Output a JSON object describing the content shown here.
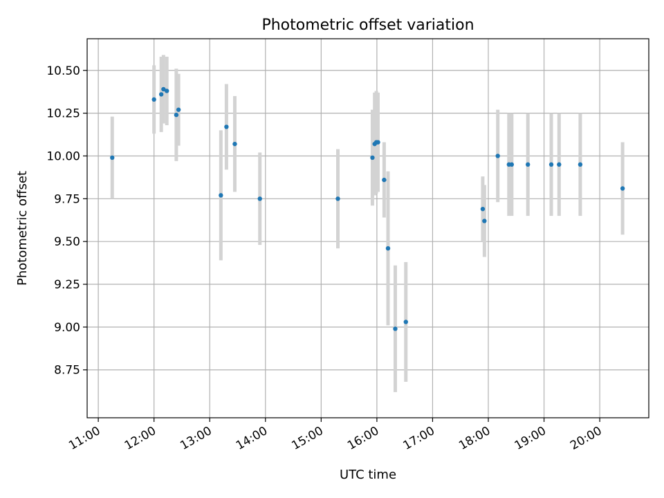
{
  "chart_data": {
    "type": "scatter",
    "title": "Photometric offset variation",
    "xlabel": "UTC time",
    "ylabel": "Photometric offset",
    "grid": true,
    "xlim": [
      10.8,
      20.88
    ],
    "ylim": [
      8.47,
      10.685
    ],
    "xticks": [
      {
        "value": 11,
        "label": "11:00"
      },
      {
        "value": 12,
        "label": "12:00"
      },
      {
        "value": 13,
        "label": "13:00"
      },
      {
        "value": 14,
        "label": "14:00"
      },
      {
        "value": 15,
        "label": "15:00"
      },
      {
        "value": 16,
        "label": "16:00"
      },
      {
        "value": 17,
        "label": "17:00"
      },
      {
        "value": 18,
        "label": "18:00"
      },
      {
        "value": 19,
        "label": "19:00"
      },
      {
        "value": 20,
        "label": "20:00"
      }
    ],
    "yticks": [
      {
        "value": 8.75,
        "label": "8.75"
      },
      {
        "value": 9.0,
        "label": "9.00"
      },
      {
        "value": 9.25,
        "label": "9.25"
      },
      {
        "value": 9.5,
        "label": "9.50"
      },
      {
        "value": 9.75,
        "label": "9.75"
      },
      {
        "value": 10.0,
        "label": "10.00"
      },
      {
        "value": 10.25,
        "label": "10.25"
      },
      {
        "value": 10.5,
        "label": "10.50"
      }
    ],
    "colors": {
      "marker": "#1f77b4",
      "errorbar": "#d3d3d3",
      "grid": "#b0b0b0",
      "axes": "#000000"
    },
    "points": [
      {
        "x": 11.25,
        "y": 9.99,
        "err": 0.24
      },
      {
        "x": 12.0,
        "y": 10.33,
        "err": 0.2
      },
      {
        "x": 12.13,
        "y": 10.36,
        "err": 0.22
      },
      {
        "x": 12.17,
        "y": 10.39,
        "err": 0.2
      },
      {
        "x": 12.23,
        "y": 10.38,
        "err": 0.2
      },
      {
        "x": 12.4,
        "y": 10.24,
        "err": 0.27
      },
      {
        "x": 12.44,
        "y": 10.27,
        "err": 0.21
      },
      {
        "x": 13.2,
        "y": 9.77,
        "err": 0.38
      },
      {
        "x": 13.3,
        "y": 10.17,
        "err": 0.25
      },
      {
        "x": 13.45,
        "y": 10.07,
        "err": 0.28
      },
      {
        "x": 13.9,
        "y": 9.75,
        "err": 0.27
      },
      {
        "x": 15.3,
        "y": 9.75,
        "err": 0.29
      },
      {
        "x": 15.92,
        "y": 9.99,
        "err": 0.28
      },
      {
        "x": 15.96,
        "y": 10.07,
        "err": 0.3
      },
      {
        "x": 15.99,
        "y": 10.08,
        "err": 0.3
      },
      {
        "x": 16.02,
        "y": 10.08,
        "err": 0.29
      },
      {
        "x": 16.13,
        "y": 9.86,
        "err": 0.22
      },
      {
        "x": 16.2,
        "y": 9.46,
        "err": 0.45
      },
      {
        "x": 16.33,
        "y": 8.99,
        "err": 0.37
      },
      {
        "x": 16.52,
        "y": 9.03,
        "err": 0.35
      },
      {
        "x": 17.9,
        "y": 9.69,
        "err": 0.19
      },
      {
        "x": 17.93,
        "y": 9.62,
        "err": 0.21
      },
      {
        "x": 18.17,
        "y": 10.0,
        "err": 0.27
      },
      {
        "x": 18.37,
        "y": 9.95,
        "err": 0.3
      },
      {
        "x": 18.42,
        "y": 9.95,
        "err": 0.3
      },
      {
        "x": 18.71,
        "y": 9.95,
        "err": 0.3
      },
      {
        "x": 19.13,
        "y": 9.95,
        "err": 0.3
      },
      {
        "x": 19.27,
        "y": 9.95,
        "err": 0.3
      },
      {
        "x": 19.65,
        "y": 9.95,
        "err": 0.3
      },
      {
        "x": 20.41,
        "y": 9.81,
        "err": 0.27
      }
    ]
  }
}
